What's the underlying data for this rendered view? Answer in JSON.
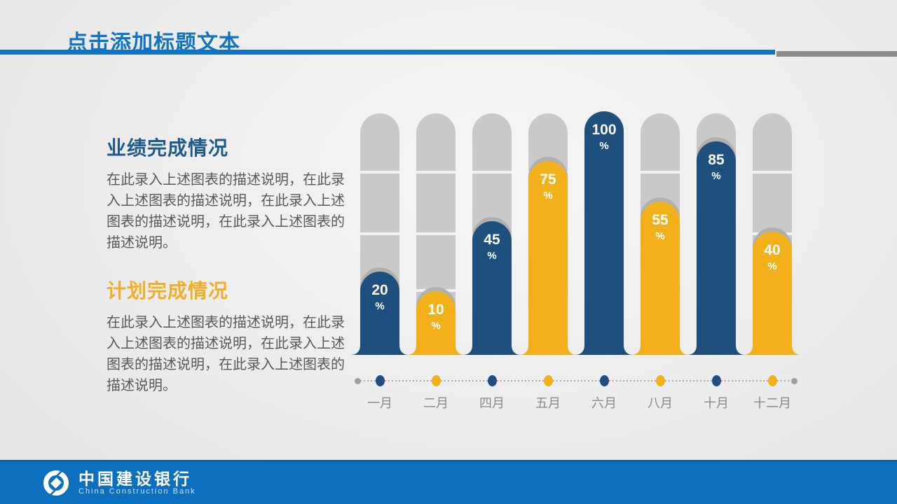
{
  "slide": {
    "title": "点击添加标题文本"
  },
  "sections": [
    {
      "heading": "业绩完成情况",
      "body": "在此录入上述图表的描述说明，在此录入上述图表的描述说明，在此录入上述图表的描述说明，在此录入上述图表的描述说明。"
    },
    {
      "heading": "计划完成情况",
      "body": "在此录入上述图表的描述说明，在此录入上述图表的描述说明，在此录入上述图表的描述说明，在此录入上述图表的描述说明。"
    }
  ],
  "chart_data": {
    "type": "bar",
    "title": "",
    "categories": [
      "一月",
      "二月",
      "四月",
      "五月",
      "六月",
      "八月",
      "十月",
      "十二月"
    ],
    "values": [
      20,
      10,
      45,
      75,
      100,
      55,
      85,
      40
    ],
    "unit": "%",
    "ylim": [
      0,
      100
    ],
    "value_labels_position": "inside-bar-top",
    "bar_colors_alternate": [
      "#1F4F7D",
      "#F2B01B"
    ],
    "track_color": "#C9C9C9",
    "grid": true,
    "x_axis_style": "dotted timeline with colored dots matching bar colors, gray end dots"
  },
  "footer": {
    "bank_name_zh": "中国建设银行",
    "bank_name_en": "China Construction Bank"
  },
  "colors": {
    "title_blue": "#1273C4",
    "heading_blue": "#1E5A8C",
    "heading_gold": "#EFAF2B",
    "body_text": "#595959",
    "month_label": "#8A8A8A",
    "bar_blue": "#1F4F7D",
    "bar_yellow": "#F2B01B",
    "track_gray": "#C9C9C9",
    "footer_blue": "#0D70BE",
    "header_rule_gray": "#8B8B8B"
  }
}
